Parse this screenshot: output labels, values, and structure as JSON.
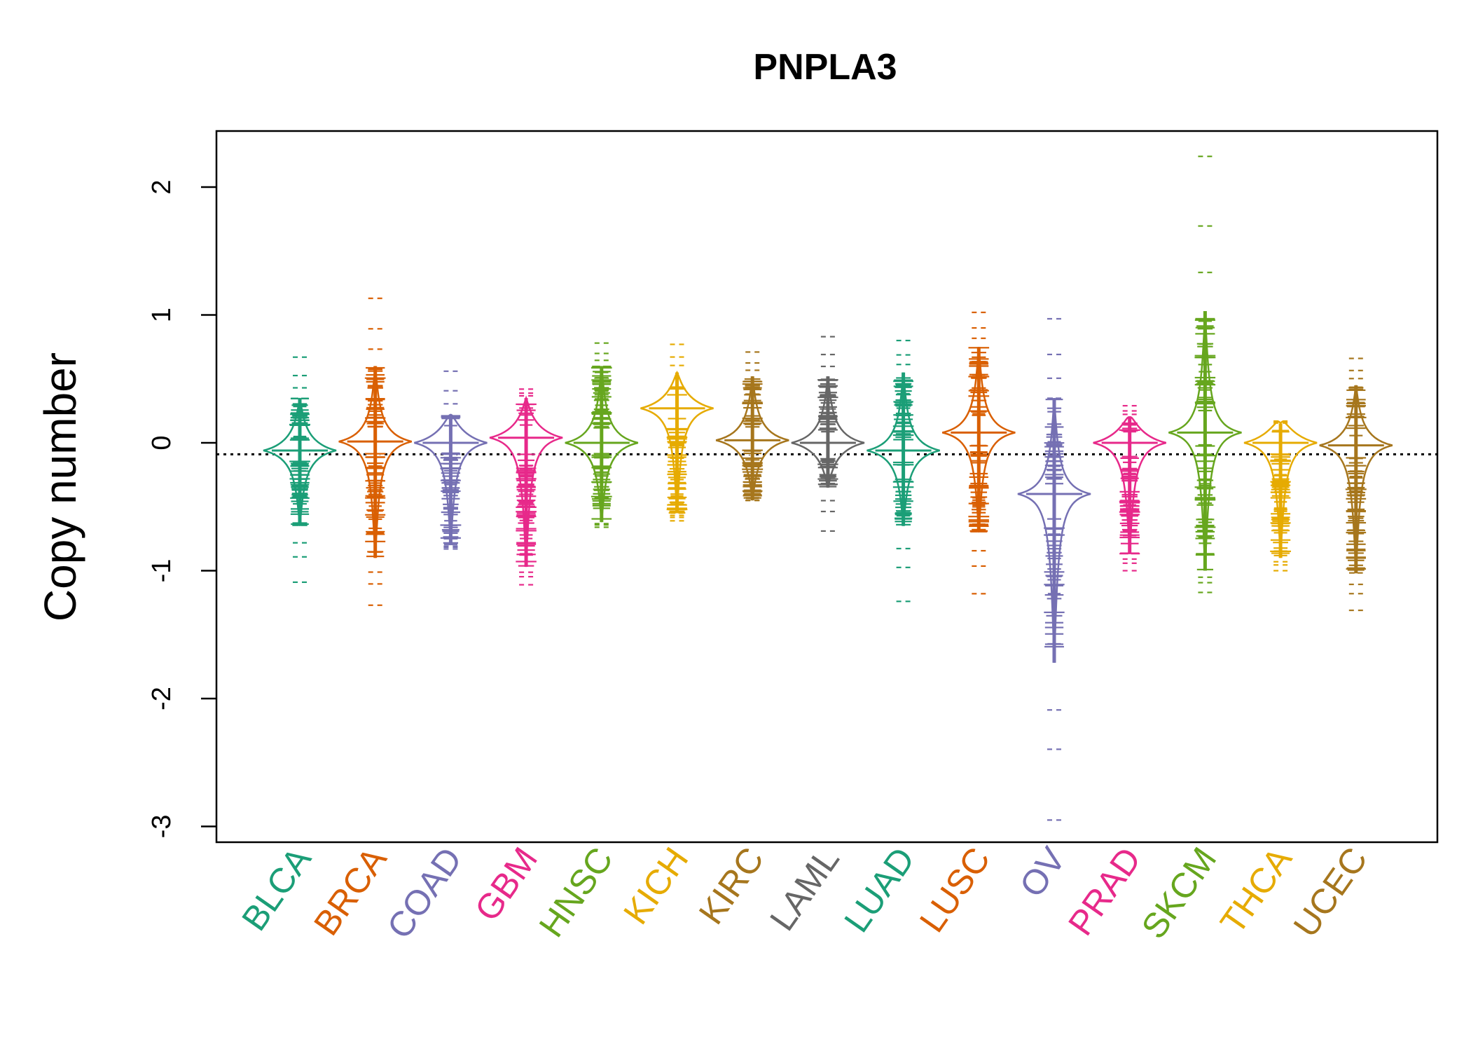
{
  "chart_data": {
    "type": "beanplot",
    "title": "PNPLA3",
    "xlabel": "",
    "ylabel": "Copy number",
    "ylim": [
      -3.1,
      2.45
    ],
    "yticks": [
      2,
      1,
      0,
      -1,
      -2,
      -3
    ],
    "overall_reference_line": -0.09,
    "grid": false,
    "legend": "none",
    "categories": [
      "BLCA",
      "BRCA",
      "COAD",
      "GBM",
      "HNSC",
      "KICH",
      "KIRC",
      "LAML",
      "LUAD",
      "LUSC",
      "OV",
      "PRAD",
      "SKCM",
      "THCA",
      "UCEC"
    ],
    "series": [
      {
        "name": "BLCA",
        "color": "#1B9E77",
        "median": -0.06,
        "min": -1.09,
        "max": 0.67,
        "dense_min": -0.65,
        "dense_max": 0.35
      },
      {
        "name": "BRCA",
        "color": "#D95F02",
        "median": 0.01,
        "min": -1.27,
        "max": 1.13,
        "dense_min": -0.9,
        "dense_max": 0.6
      },
      {
        "name": "COAD",
        "color": "#7570B3",
        "median": 0.0,
        "min": -0.83,
        "max": 0.56,
        "dense_min": -0.8,
        "dense_max": 0.22
      },
      {
        "name": "GBM",
        "color": "#E7298A",
        "median": 0.04,
        "min": -1.11,
        "max": 0.42,
        "dense_min": -0.97,
        "dense_max": 0.35
      },
      {
        "name": "HNSC",
        "color": "#66A61E",
        "median": 0.0,
        "min": -0.66,
        "max": 0.78,
        "dense_min": -0.62,
        "dense_max": 0.6
      },
      {
        "name": "KICH",
        "color": "#E6AB02",
        "median": 0.27,
        "min": -0.61,
        "max": 0.77,
        "dense_min": -0.55,
        "dense_max": 0.55
      },
      {
        "name": "KIRC",
        "color": "#A6761D",
        "median": 0.02,
        "min": -0.45,
        "max": 0.71,
        "dense_min": -0.45,
        "dense_max": 0.52
      },
      {
        "name": "LAML",
        "color": "#666666",
        "median": 0.0,
        "min": -0.69,
        "max": 0.83,
        "dense_min": -0.35,
        "dense_max": 0.52
      },
      {
        "name": "LUAD",
        "color": "#1B9E77",
        "median": -0.06,
        "min": -1.24,
        "max": 0.8,
        "dense_min": -0.65,
        "dense_max": 0.55
      },
      {
        "name": "LUSC",
        "color": "#D95F02",
        "median": 0.08,
        "min": -1.18,
        "max": 1.02,
        "dense_min": -0.7,
        "dense_max": 0.75
      },
      {
        "name": "OV",
        "color": "#7570B3",
        "median": -0.4,
        "min": -2.95,
        "max": 0.97,
        "dense_min": -1.72,
        "dense_max": 0.35
      },
      {
        "name": "PRAD",
        "color": "#E7298A",
        "median": 0.0,
        "min": -1.0,
        "max": 0.29,
        "dense_min": -0.87,
        "dense_max": 0.2
      },
      {
        "name": "SKCM",
        "color": "#66A61E",
        "median": 0.08,
        "min": -1.17,
        "max": 2.24,
        "dense_min": -1.0,
        "dense_max": 1.03
      },
      {
        "name": "THCA",
        "color": "#E6AB02",
        "median": 0.0,
        "min": -1.0,
        "max": 0.17,
        "dense_min": -0.9,
        "dense_max": 0.15
      },
      {
        "name": "UCEC",
        "color": "#A6761D",
        "median": -0.02,
        "min": -1.31,
        "max": 0.66,
        "dense_min": -1.02,
        "dense_max": 0.45
      }
    ]
  }
}
